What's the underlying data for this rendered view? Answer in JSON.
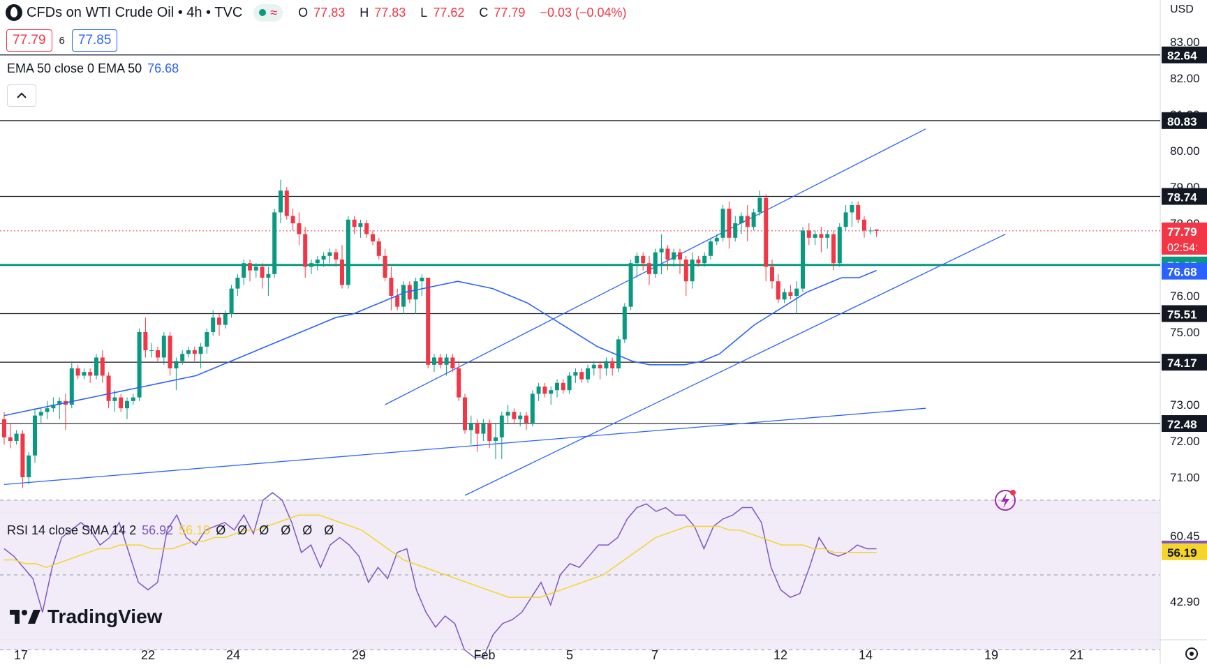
{
  "header": {
    "title": "CFDs on WTI Crude Oil • 4h • TVC",
    "ohlc": {
      "open_label": "O",
      "open": "77.83",
      "high_label": "H",
      "high": "77.83",
      "low_label": "L",
      "low": "77.62",
      "close_label": "C",
      "close": "77.79",
      "change": "−0.03 (−0.04%)"
    },
    "sell_price": "77.79",
    "spread": "6",
    "buy_price": "77.85"
  },
  "indicators": {
    "ema_legend_label": "EMA 50 close 0 EMA 50",
    "ema_value": "76.68",
    "rsi_legend_label": "RSI 14 close SMA 14 2",
    "rsi_value": "56.92",
    "rsi_sma_value": "56.19",
    "rsi_empty_values": "Ø Ø Ø Ø Ø Ø"
  },
  "brand": {
    "name": "TradingView"
  },
  "icons": [
    "chevron-up-icon",
    "lightning-icon",
    "settings-gear-icon",
    "tradingview-logo-icon",
    "market-status-dot-icon"
  ],
  "chart_data": {
    "type": "candlestick",
    "currency": "USD",
    "price_ticks": [
      "83.00",
      "82.00",
      "81.00",
      "80.00",
      "79.00",
      "78.00",
      "76.00",
      "75.00",
      "73.00",
      "72.00",
      "71.00"
    ],
    "x_ticks": [
      "17",
      "22",
      "24",
      "29",
      "Feb",
      "5",
      "7",
      "12",
      "14",
      "19",
      "21"
    ],
    "horizontal_levels": [
      "82.64",
      "80.83",
      "78.74",
      "75.51",
      "74.17",
      "72.48"
    ],
    "support_level_teal": "76.85",
    "last_price_label": "77.79",
    "countdown": "02:54:",
    "ema_label": "76.68",
    "rsi_ticks": [
      "60.45",
      "42.90"
    ],
    "rsi_label": "56.92",
    "rsi_sma_label": "56.19",
    "colors": {
      "up": "#089981",
      "down": "#f23645",
      "ema": "#2962ff",
      "teal_line": "#089981",
      "rsi": "#7e57c2",
      "rsi_sma": "#f5d42b",
      "trendline": "#2962ff"
    },
    "candles": [
      [
        72.6,
        72.8,
        71.9,
        72.1
      ],
      [
        72.1,
        72.5,
        71.8,
        72.0
      ],
      [
        72.0,
        72.3,
        71.9,
        72.2
      ],
      [
        72.2,
        72.3,
        70.7,
        71.0
      ],
      [
        71.0,
        71.7,
        70.8,
        71.6
      ],
      [
        71.6,
        72.9,
        71.4,
        72.7
      ],
      [
        72.7,
        72.9,
        72.5,
        72.8
      ],
      [
        72.8,
        73.1,
        72.6,
        72.9
      ],
      [
        72.9,
        73.2,
        72.8,
        73.0
      ],
      [
        73.0,
        73.2,
        72.6,
        73.1
      ],
      [
        73.1,
        73.3,
        72.3,
        73.0
      ],
      [
        73.0,
        74.2,
        72.9,
        74.0
      ],
      [
        74.0,
        74.1,
        73.7,
        73.8
      ],
      [
        73.8,
        74.0,
        73.7,
        73.9
      ],
      [
        73.9,
        74.0,
        73.6,
        73.8
      ],
      [
        73.8,
        74.4,
        73.7,
        74.3
      ],
      [
        74.3,
        74.5,
        73.6,
        73.8
      ],
      [
        73.8,
        73.9,
        72.9,
        73.1
      ],
      [
        73.1,
        73.4,
        72.8,
        73.2
      ],
      [
        73.2,
        73.3,
        72.8,
        72.9
      ],
      [
        72.9,
        73.2,
        72.6,
        73.1
      ],
      [
        73.1,
        73.3,
        73.0,
        73.2
      ],
      [
        73.2,
        75.1,
        73.1,
        75.0
      ],
      [
        75.0,
        75.4,
        74.3,
        74.5
      ],
      [
        74.5,
        74.7,
        74.3,
        74.5
      ],
      [
        74.5,
        74.6,
        74.2,
        74.3
      ],
      [
        74.3,
        75.0,
        74.1,
        74.9
      ],
      [
        74.9,
        75.0,
        73.8,
        74.0
      ],
      [
        74.0,
        74.3,
        73.4,
        74.2
      ],
      [
        74.2,
        74.5,
        74.1,
        74.4
      ],
      [
        74.4,
        74.6,
        74.3,
        74.5
      ],
      [
        74.5,
        74.6,
        74.2,
        74.4
      ],
      [
        74.4,
        74.7,
        74.0,
        74.6
      ],
      [
        74.6,
        75.1,
        74.4,
        75.0
      ],
      [
        75.0,
        75.6,
        74.9,
        75.4
      ],
      [
        75.4,
        75.5,
        74.9,
        75.2
      ],
      [
        75.2,
        75.6,
        75.1,
        75.5
      ],
      [
        75.5,
        76.3,
        75.4,
        76.2
      ],
      [
        76.2,
        76.6,
        76.0,
        76.5
      ],
      [
        76.5,
        77.0,
        76.3,
        76.9
      ],
      [
        76.9,
        77.0,
        76.4,
        76.7
      ],
      [
        76.7,
        76.9,
        76.5,
        76.8
      ],
      [
        76.8,
        76.9,
        76.2,
        76.5
      ],
      [
        76.5,
        76.8,
        76.0,
        76.6
      ],
      [
        76.6,
        78.4,
        76.5,
        78.3
      ],
      [
        78.3,
        79.2,
        78.0,
        78.9
      ],
      [
        78.9,
        79.0,
        78.1,
        78.2
      ],
      [
        78.2,
        78.4,
        77.8,
        78.0
      ],
      [
        78.0,
        78.3,
        77.4,
        77.7
      ],
      [
        77.7,
        77.9,
        76.5,
        76.8
      ],
      [
        76.8,
        77.0,
        76.6,
        76.9
      ],
      [
        76.9,
        77.1,
        76.7,
        77.0
      ],
      [
        77.0,
        77.2,
        76.8,
        77.1
      ],
      [
        77.1,
        77.3,
        76.9,
        77.2
      ],
      [
        77.2,
        77.3,
        76.8,
        77.0
      ],
      [
        77.0,
        77.4,
        76.2,
        76.3
      ],
      [
        76.3,
        78.2,
        76.2,
        78.1
      ],
      [
        78.1,
        78.2,
        77.7,
        77.9
      ],
      [
        77.9,
        78.1,
        77.6,
        78.0
      ],
      [
        78.0,
        78.1,
        77.6,
        77.7
      ],
      [
        77.7,
        77.8,
        77.4,
        77.5
      ],
      [
        77.5,
        77.6,
        77.0,
        77.1
      ],
      [
        77.1,
        77.3,
        76.4,
        76.5
      ],
      [
        76.5,
        76.8,
        75.6,
        76.0
      ],
      [
        76.0,
        76.2,
        75.6,
        75.7
      ],
      [
        75.7,
        76.4,
        75.5,
        76.3
      ],
      [
        76.3,
        76.4,
        75.8,
        75.9
      ],
      [
        75.9,
        76.5,
        75.5,
        76.4
      ],
      [
        76.4,
        76.6,
        76.0,
        76.5
      ],
      [
        76.5,
        76.5,
        74.0,
        74.1
      ],
      [
        74.1,
        74.4,
        73.9,
        74.3
      ],
      [
        74.3,
        74.4,
        74.0,
        74.1
      ],
      [
        74.1,
        74.4,
        73.8,
        74.3
      ],
      [
        74.3,
        74.4,
        73.9,
        74.0
      ],
      [
        74.0,
        74.2,
        73.1,
        73.2
      ],
      [
        73.2,
        73.3,
        72.2,
        72.3
      ],
      [
        72.3,
        72.7,
        71.9,
        72.5
      ],
      [
        72.5,
        72.6,
        71.7,
        72.2
      ],
      [
        72.2,
        72.6,
        72.0,
        72.5
      ],
      [
        72.5,
        72.6,
        71.8,
        72.0
      ],
      [
        72.0,
        72.5,
        71.5,
        72.1
      ],
      [
        72.1,
        72.8,
        71.5,
        72.7
      ],
      [
        72.7,
        73.0,
        72.5,
        72.8
      ],
      [
        72.8,
        72.9,
        72.5,
        72.6
      ],
      [
        72.6,
        72.8,
        72.4,
        72.7
      ],
      [
        72.7,
        72.8,
        72.3,
        72.5
      ],
      [
        72.5,
        73.4,
        72.4,
        73.3
      ],
      [
        73.3,
        73.6,
        73.1,
        73.5
      ],
      [
        73.5,
        73.6,
        73.2,
        73.3
      ],
      [
        73.3,
        73.5,
        73.0,
        73.4
      ],
      [
        73.4,
        73.7,
        73.2,
        73.6
      ],
      [
        73.6,
        73.7,
        73.3,
        73.4
      ],
      [
        73.4,
        73.9,
        73.3,
        73.8
      ],
      [
        73.8,
        74.0,
        73.6,
        73.9
      ],
      [
        73.9,
        74.0,
        73.6,
        73.7
      ],
      [
        73.7,
        74.1,
        73.6,
        74.0
      ],
      [
        74.0,
        74.2,
        73.8,
        74.1
      ],
      [
        74.1,
        74.2,
        73.7,
        74.0
      ],
      [
        74.0,
        74.3,
        73.8,
        74.2
      ],
      [
        74.2,
        74.3,
        73.8,
        74.0
      ],
      [
        74.0,
        74.9,
        73.9,
        74.8
      ],
      [
        74.8,
        75.8,
        74.7,
        75.7
      ],
      [
        75.7,
        77.0,
        75.6,
        76.9
      ],
      [
        76.9,
        77.2,
        76.5,
        77.1
      ],
      [
        77.1,
        77.2,
        76.7,
        76.9
      ],
      [
        76.9,
        77.1,
        76.3,
        76.6
      ],
      [
        76.6,
        77.3,
        76.5,
        77.2
      ],
      [
        77.2,
        77.7,
        76.6,
        77.3
      ],
      [
        77.3,
        77.4,
        76.7,
        77.0
      ],
      [
        77.0,
        77.3,
        76.8,
        77.2
      ],
      [
        77.2,
        77.3,
        76.6,
        77.0
      ],
      [
        77.0,
        77.1,
        76.0,
        76.4
      ],
      [
        76.4,
        77.2,
        76.2,
        77.0
      ],
      [
        77.0,
        77.1,
        76.8,
        76.9
      ],
      [
        76.9,
        77.2,
        76.8,
        77.1
      ],
      [
        77.1,
        77.6,
        77.0,
        77.5
      ],
      [
        77.5,
        77.7,
        77.4,
        77.6
      ],
      [
        77.6,
        78.5,
        77.5,
        78.4
      ],
      [
        78.4,
        78.6,
        77.3,
        77.6
      ],
      [
        77.6,
        78.2,
        77.5,
        78.0
      ],
      [
        78.0,
        78.3,
        77.7,
        78.2
      ],
      [
        78.2,
        78.5,
        77.5,
        77.9
      ],
      [
        77.9,
        78.4,
        77.8,
        78.3
      ],
      [
        78.3,
        78.9,
        78.2,
        78.7
      ],
      [
        78.7,
        78.8,
        76.4,
        76.8
      ],
      [
        76.8,
        77.0,
        76.2,
        76.4
      ],
      [
        76.4,
        76.6,
        75.8,
        75.9
      ],
      [
        75.9,
        76.2,
        75.8,
        76.1
      ],
      [
        76.1,
        76.3,
        75.9,
        76.0
      ],
      [
        76.0,
        76.4,
        75.5,
        76.2
      ],
      [
        76.2,
        77.9,
        76.1,
        77.8
      ],
      [
        77.8,
        78.0,
        77.4,
        77.6
      ],
      [
        77.6,
        77.8,
        77.4,
        77.7
      ],
      [
        77.7,
        77.9,
        77.2,
        77.6
      ],
      [
        77.6,
        77.8,
        77.3,
        77.7
      ],
      [
        77.7,
        77.8,
        76.7,
        76.9
      ],
      [
        76.9,
        78.0,
        76.8,
        77.9
      ],
      [
        77.9,
        78.5,
        77.8,
        78.3
      ],
      [
        78.3,
        78.6,
        77.9,
        78.5
      ],
      [
        78.5,
        78.6,
        78.0,
        78.1
      ],
      [
        78.1,
        78.2,
        77.6,
        77.8
      ],
      [
        77.8,
        77.9,
        77.7,
        77.8
      ],
      [
        77.83,
        77.83,
        77.62,
        77.79
      ]
    ],
    "ema": [
      72.7,
      72.8,
      72.9,
      73.0,
      73.1,
      73.2,
      73.3,
      73.4,
      73.5,
      73.6,
      73.7,
      73.8,
      74.0,
      74.2,
      74.4,
      74.6,
      74.8,
      75.0,
      75.2,
      75.4,
      75.5,
      75.7,
      75.9,
      76.1,
      76.2,
      76.3,
      76.4,
      76.3,
      76.2,
      76.0,
      75.8,
      75.5,
      75.2,
      74.9,
      74.6,
      74.4,
      74.2,
      74.1,
      74.1,
      74.1,
      74.2,
      74.4,
      74.8,
      75.2,
      75.5,
      75.8,
      76.1,
      76.3,
      76.5,
      76.5,
      76.7
    ],
    "rsi": [
      57,
      55,
      52,
      49,
      40,
      52,
      60,
      62,
      64,
      62,
      58,
      60,
      64,
      56,
      48,
      46,
      48,
      62,
      66,
      60,
      58,
      62,
      63,
      64,
      62,
      66,
      61,
      70,
      72,
      70,
      64,
      56,
      58,
      52,
      58,
      60,
      58,
      55,
      48,
      52,
      49,
      56,
      57,
      46,
      40,
      36,
      39,
      37,
      30,
      28,
      28,
      34,
      37,
      38,
      40,
      44,
      48,
      42,
      50,
      53,
      52,
      55,
      58,
      58,
      60,
      65,
      68,
      69,
      67,
      68,
      66,
      66,
      63,
      57,
      63,
      65,
      66,
      68,
      68,
      64,
      52,
      46,
      44,
      45,
      52,
      60,
      56,
      55,
      56,
      58,
      57,
      57
    ],
    "rsi_sma": [
      54,
      54,
      53,
      53,
      52,
      53,
      54,
      55,
      56,
      57,
      57,
      58,
      58,
      58,
      57,
      57,
      57,
      58,
      59,
      59,
      60,
      60,
      61,
      62,
      62,
      63,
      64,
      65,
      66,
      66,
      66,
      65,
      64,
      63,
      62,
      60,
      58,
      56,
      54,
      53,
      52,
      51,
      50,
      49,
      48,
      47,
      46,
      45,
      44,
      44,
      44,
      44,
      45,
      46,
      47,
      48,
      49,
      50,
      52,
      54,
      56,
      58,
      60,
      61,
      62,
      63,
      63,
      63,
      63,
      62,
      62,
      61,
      60,
      59,
      58,
      58,
      58,
      57,
      57,
      56,
      56,
      56,
      56,
      56
    ],
    "trendlines": [
      {
        "from": [
          0,
          70.8
        ],
        "to": [
          150,
          72.9
        ]
      },
      {
        "from": [
          62,
          73.0
        ],
        "to": [
          150,
          80.6
        ]
      },
      {
        "from": [
          75,
          70.5
        ],
        "to": [
          163,
          77.7
        ]
      }
    ]
  }
}
